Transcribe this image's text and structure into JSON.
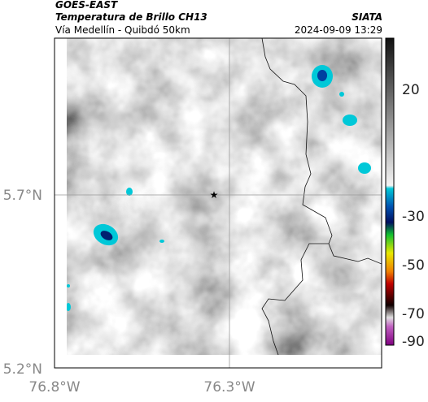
{
  "header": {
    "source": "GOES-EAST",
    "product": "Temperatura de Brillo CH13",
    "org": "SIATA",
    "region": "Vía Medellín - Quibdó 50km",
    "timestamp": "2024-09-09 13:29"
  },
  "map": {
    "y_labels": [
      "5.7°N",
      "5.2°N"
    ],
    "x_labels": [
      "76.8°W",
      "76.3°W"
    ]
  },
  "colorbar": {
    "labels": [
      "20",
      "-30",
      "-50",
      "-70",
      "-90"
    ]
  }
}
